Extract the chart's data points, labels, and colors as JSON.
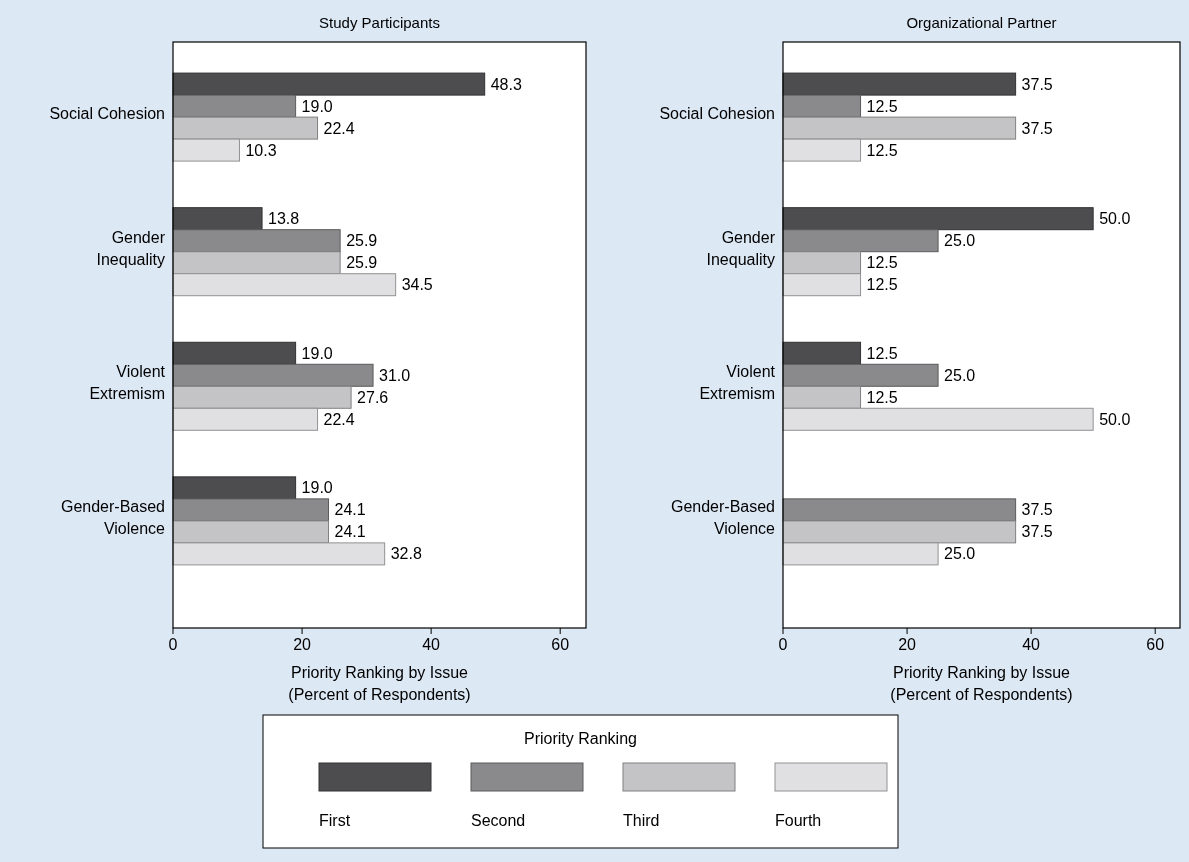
{
  "chart_data": [
    {
      "type": "bar",
      "orientation": "horizontal",
      "title": "Study Participants",
      "xlabel": "Priority Ranking by Issue (Percent of Respondents)",
      "categories": [
        "Social Cohesion",
        "Gender Inequality",
        "Violent Extremism",
        "Gender-Based Violence"
      ],
      "legend_title": "Priority Ranking",
      "legend": "bottom",
      "grid": false,
      "xlim": [
        0,
        64
      ],
      "xticks": [
        0,
        20,
        40,
        60
      ],
      "series": [
        {
          "name": "First",
          "color": "#4d4d4f",
          "values": [
            48.3,
            13.8,
            19.0,
            19.0
          ],
          "value_labels": [
            "48.3",
            "13.8",
            "19.0",
            "19.0"
          ]
        },
        {
          "name": "Second",
          "color": "#8a8a8c",
          "values": [
            19.0,
            25.9,
            31.0,
            24.1
          ],
          "value_labels": [
            "19.0",
            "25.9",
            "31.0",
            "24.1"
          ]
        },
        {
          "name": "Third",
          "color": "#c4c4c6",
          "values": [
            22.4,
            25.9,
            27.6,
            24.1
          ],
          "value_labels": [
            "22.4",
            "25.9",
            "27.6",
            "24.1"
          ]
        },
        {
          "name": "Fourth",
          "color": "#e0e0e2",
          "values": [
            10.3,
            34.5,
            22.4,
            32.8
          ],
          "value_labels": [
            "10.3",
            "34.5",
            "22.4",
            "32.8"
          ]
        }
      ]
    },
    {
      "type": "bar",
      "orientation": "horizontal",
      "title": "Organizational Partner",
      "xlabel": "Priority Ranking by Issue (Percent of Respondents)",
      "categories": [
        "Social Cohesion",
        "Gender Inequality",
        "Violent Extremism",
        "Gender-Based Violence"
      ],
      "grid": false,
      "xlim": [
        0,
        64
      ],
      "xticks": [
        0,
        20,
        40,
        60
      ],
      "series": [
        {
          "color": "#4d4d4f",
          "values": [
            37.5,
            50.0,
            12.5,
            null
          ],
          "value_labels": [
            "37.5",
            "50.0",
            "12.5",
            null
          ]
        },
        {
          "color": "#8a8a8c",
          "values": [
            12.5,
            25.0,
            25.0,
            37.5
          ],
          "value_labels": [
            "12.5",
            "25.0",
            "25.0",
            "37.5"
          ]
        },
        {
          "color": "#c4c4c6",
          "values": [
            37.5,
            12.5,
            12.5,
            37.5
          ],
          "value_labels": [
            "37.5",
            "12.5",
            "12.5",
            "37.5"
          ]
        },
        {
          "color": "#e0e0e2",
          "values": [
            12.5,
            12.5,
            50.0,
            25.0
          ],
          "value_labels": [
            "12.5",
            "12.5",
            "50.0",
            "25.0"
          ]
        }
      ]
    }
  ]
}
